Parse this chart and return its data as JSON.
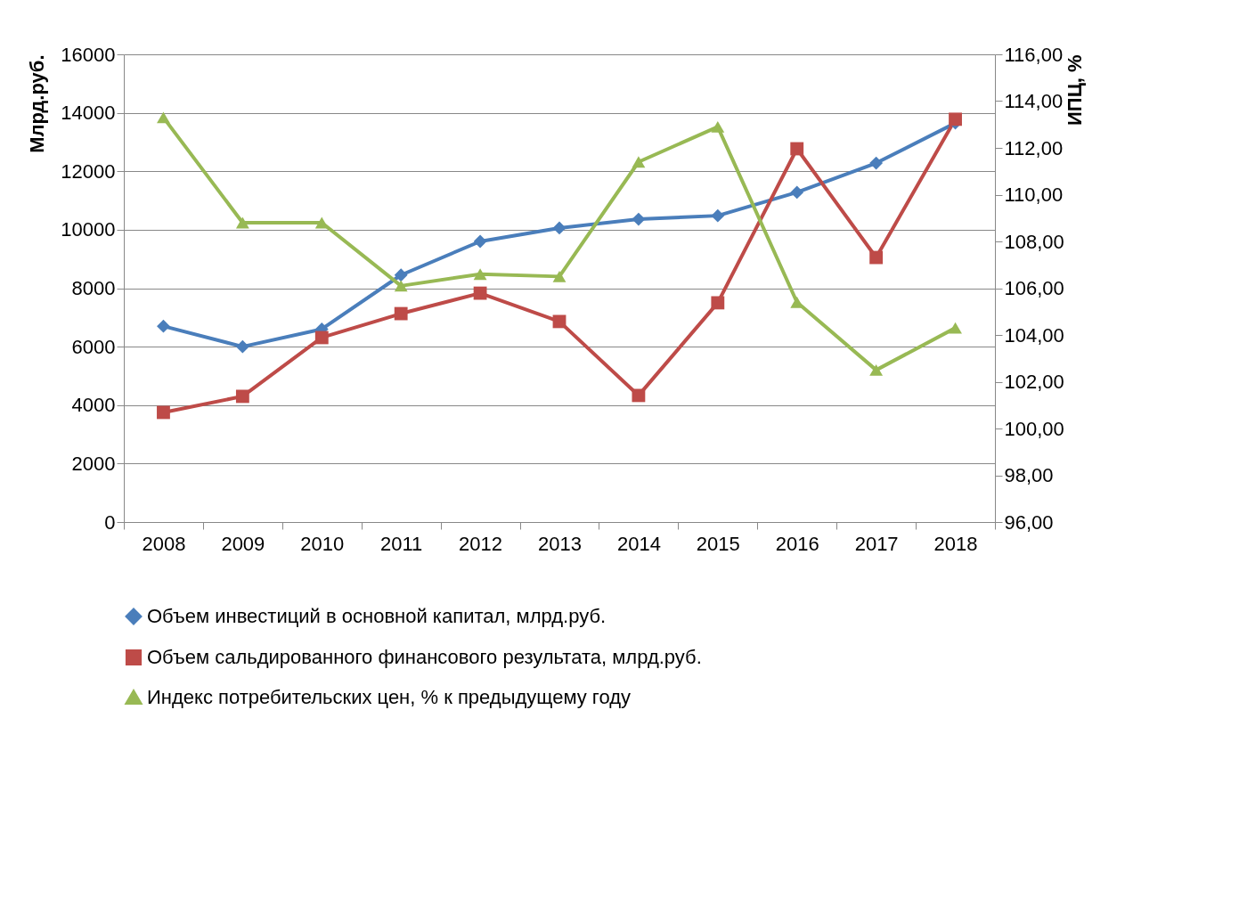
{
  "chart_data": {
    "type": "line",
    "ylabel": "Млрд.руб.",
    "y2label": "ИПЦ, %",
    "categories": [
      "2008",
      "2009",
      "2010",
      "2011",
      "2012",
      "2013",
      "2014",
      "2015",
      "2016",
      "2017",
      "2018"
    ],
    "series": [
      {
        "name": "Объем инвестиций в основной капитал, млрд.руб.",
        "color": "#4a7ebb",
        "marker": "diamond",
        "values": [
          6700,
          6000,
          6600,
          8450,
          9600,
          10060,
          10360,
          10480,
          11280,
          12280,
          13650
        ]
      },
      {
        "name": "Объем сальдированного финансового результата, млрд.руб.",
        "color": "#be4b48",
        "marker": "square",
        "values": [
          3750,
          4300,
          6310,
          7130,
          7830,
          6860,
          4330,
          7500,
          12770,
          9050,
          13780
        ]
      },
      {
        "name": "Индекс потребительских цен, % к предыдущему году",
        "color": "#98b954",
        "marker": "triangle",
        "axis": "y2",
        "values": [
          113.3,
          108.8,
          108.8,
          106.1,
          106.6,
          106.5,
          111.4,
          112.9,
          105.4,
          102.5,
          104.3
        ]
      }
    ],
    "ylim": [
      0,
      16000
    ],
    "yticks": [
      0,
      2000,
      4000,
      6000,
      8000,
      10000,
      12000,
      14000,
      16000
    ],
    "y2lim": [
      96,
      116
    ],
    "y2ticks": [
      {
        "value": 96,
        "label": "96,00"
      },
      {
        "value": 98,
        "label": "98,00"
      },
      {
        "value": 100,
        "label": "100,00"
      },
      {
        "value": 102,
        "label": "102,00"
      },
      {
        "value": 104,
        "label": "104,00"
      },
      {
        "value": 106,
        "label": "106,00"
      },
      {
        "value": 108,
        "label": "108,00"
      },
      {
        "value": 110,
        "label": "110,00"
      },
      {
        "value": 112,
        "label": "112,00"
      },
      {
        "value": 114,
        "label": "114,00"
      },
      {
        "value": 116,
        "label": "116,00"
      }
    ],
    "grid": "y",
    "legend": "bottom",
    "line_style": "solid"
  }
}
